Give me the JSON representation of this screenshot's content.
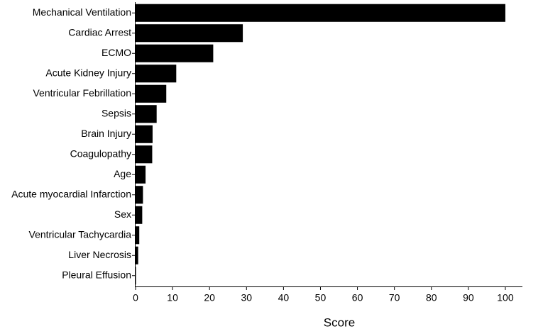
{
  "chart_data": {
    "type": "barh",
    "x_label": "Score",
    "categories": [
      "Mechanical Ventilation",
      "Cardiac Arrest",
      "ECMO",
      "Acute Kidney Injury",
      "Ventricular Febrillation",
      "Sepsis",
      "Brain Injury",
      "Coagulopathy",
      "Age",
      "Acute myocardial Infarction",
      "Sex",
      "Ventricular Tachycardia",
      "Liver Necrosis",
      "Pleural Effusion"
    ],
    "values": [
      100,
      29,
      21,
      11,
      8.3,
      5.7,
      4.6,
      4.5,
      2.7,
      2.0,
      1.8,
      1.0,
      0.7,
      0.1
    ],
    "color": "#000000",
    "xlim": [
      0,
      105
    ],
    "xticks": [
      0,
      10,
      20,
      30,
      40,
      50,
      60,
      70,
      80,
      90,
      100
    ],
    "grid": false
  }
}
